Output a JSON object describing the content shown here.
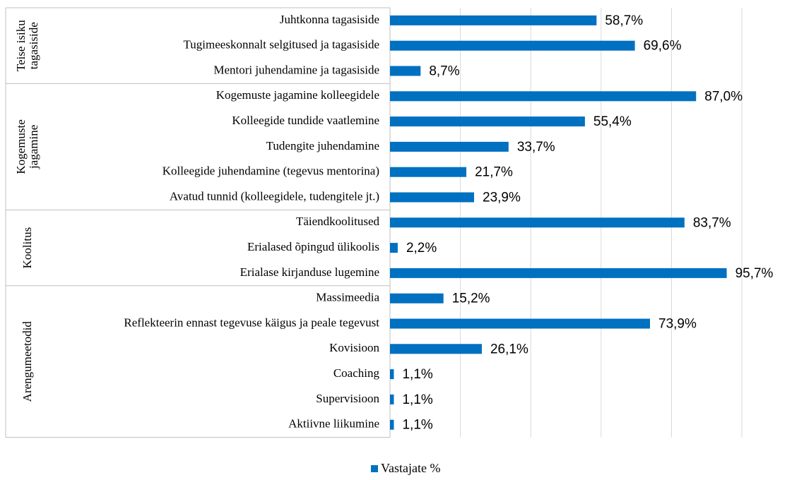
{
  "chart_data": {
    "type": "bar",
    "orientation": "horizontal",
    "series_name": "Vastajate %",
    "color": "#0070c0",
    "xlim": [
      0,
      100
    ],
    "xticks": [
      0,
      20,
      40,
      60,
      80,
      100
    ],
    "grid": true,
    "legend": "bottom",
    "groups": [
      {
        "lines": [
          "Teise isiku",
          "tagasiside"
        ],
        "categories": [
          "Juhtkonna tagasiside",
          "Tugimeeskonnalt selgitused ja tagasiside",
          "Mentori juhendamine ja tagasiside"
        ],
        "values": [
          58.7,
          69.6,
          8.7
        ],
        "value_labels": [
          "58,7%",
          "69,6%",
          "8,7%"
        ]
      },
      {
        "lines": [
          "Kogemuste",
          "jagamine"
        ],
        "categories": [
          "Kogemuste jagamine kolleegidele",
          "Kolleegide tundide vaatlemine",
          "Tudengite juhendamine",
          "Kolleegide juhendamine (tegevus mentorina)",
          "Avatud tunnid (kolleegidele, tudengitele jt.)"
        ],
        "values": [
          87.0,
          55.4,
          33.7,
          21.7,
          23.9
        ],
        "value_labels": [
          "87,0%",
          "55,4%",
          "33,7%",
          "21,7%",
          "23,9%"
        ]
      },
      {
        "lines": [
          "Koolitus"
        ],
        "categories": [
          "Täiendkoolitused",
          "Erialased õpingud ülikoolis",
          "Erialase kirjanduse lugemine"
        ],
        "values": [
          83.7,
          2.2,
          95.7
        ],
        "value_labels": [
          "83,7%",
          "2,2%",
          "95,7%"
        ]
      },
      {
        "lines": [
          "Arengumeetodid"
        ],
        "categories": [
          "Massimeedia",
          "Reflekteerin ennast tegevuse käigus ja peale tegevust",
          "Kovisioon",
          "Coaching",
          "Supervisioon",
          "Aktiivne liikumine"
        ],
        "values": [
          15.2,
          73.9,
          26.1,
          1.1,
          1.1,
          1.1
        ],
        "value_labels": [
          "15,2%",
          "73,9%",
          "26,1%",
          "1,1%",
          "1,1%",
          "1,1%"
        ]
      }
    ]
  }
}
